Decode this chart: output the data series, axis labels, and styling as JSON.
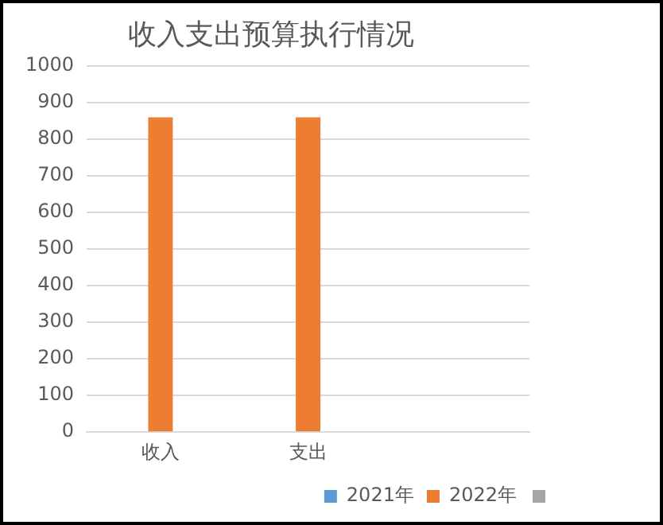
{
  "chart_data": {
    "type": "bar",
    "title": "收入支出预算执行情况",
    "categories": [
      "收入",
      "支出",
      null
    ],
    "series": [
      {
        "name": "2021年",
        "color": "#5b9bd5",
        "values": [
          null,
          null,
          null
        ]
      },
      {
        "name": "2022年",
        "color": "#ed7d31",
        "values": [
          860,
          860,
          null
        ]
      },
      {
        "color": "#a5a5a5",
        "values": [
          null,
          null,
          null
        ]
      }
    ],
    "ylim": [
      0,
      1000
    ],
    "yticks": [
      0,
      100,
      200,
      300,
      400,
      500,
      600,
      700,
      800,
      900,
      1000
    ],
    "grid": "y",
    "legend": "bottom right"
  }
}
